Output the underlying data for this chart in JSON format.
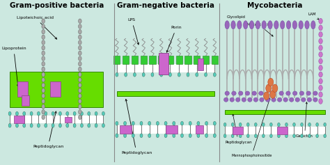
{
  "bg_color": "#cce8e0",
  "green_layer": "#66dd00",
  "pink_protein": "#cc66cc",
  "teal_head": "#55ccbb",
  "gray_bead": "#aaaaaa",
  "green_square": "#33cc33",
  "orange_bead": "#dd7744",
  "purple_bead": "#9966bb",
  "titles": [
    "Gram-positive bacteria",
    "Gram-negative bacteria",
    "Mycobacteria"
  ],
  "title_fontsize": 7.5
}
